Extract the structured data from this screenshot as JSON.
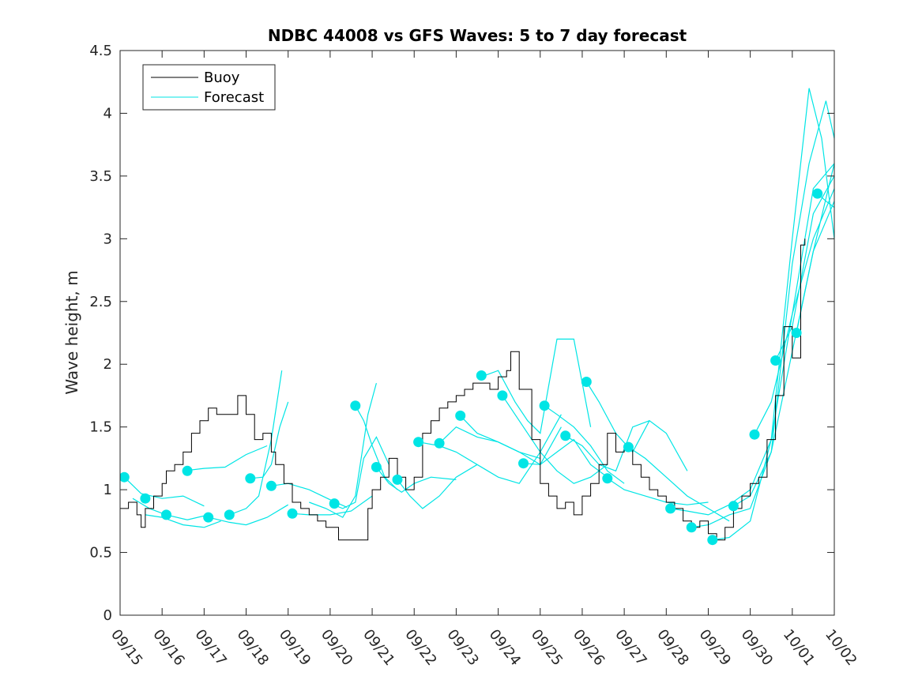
{
  "chart_data": {
    "type": "line",
    "title": "NDBC 44008 vs GFS Waves: 5 to 7 day forecast",
    "xlabel": "",
    "ylabel": "Wave height, m",
    "xlim": [
      0,
      17
    ],
    "ylim": [
      0,
      4.5
    ],
    "yticks": [
      0,
      0.5,
      1,
      1.5,
      2,
      2.5,
      3,
      3.5,
      4,
      4.5
    ],
    "ytick_labels": [
      "0",
      "0.5",
      "1",
      "1.5",
      "2",
      "2.5",
      "3",
      "3.5",
      "4",
      "4.5"
    ],
    "xticks": [
      0,
      1,
      2,
      3,
      4,
      5,
      6,
      7,
      8,
      9,
      10,
      11,
      12,
      13,
      14,
      15,
      16,
      17
    ],
    "xtick_labels": [
      "09/15",
      "09/16",
      "09/17",
      "09/18",
      "09/19",
      "09/20",
      "09/21",
      "09/22",
      "09/23",
      "09/24",
      "09/25",
      "09/26",
      "09/27",
      "09/28",
      "09/29",
      "09/30",
      "10/01",
      "10/02"
    ],
    "x_units": "days since 09/15 00:00",
    "legend": {
      "position": "top-left",
      "entries": [
        {
          "label": "Buoy",
          "color": "#000000"
        },
        {
          "label": "Forecast",
          "color": "#00e5e5"
        }
      ]
    },
    "colors": {
      "buoy": "#000000",
      "forecast": "#00e5e5",
      "axes": "#262626"
    },
    "buoy": {
      "name": "Buoy",
      "x": [
        0,
        0.2,
        0.4,
        0.5,
        0.6,
        0.8,
        1.0,
        1.1,
        1.3,
        1.5,
        1.7,
        1.9,
        2.1,
        2.3,
        2.5,
        2.8,
        3.0,
        3.2,
        3.4,
        3.6,
        3.7,
        3.9,
        4.1,
        4.3,
        4.5,
        4.7,
        4.9,
        5.0,
        5.2,
        5.5,
        5.7,
        5.9,
        6.0,
        6.2,
        6.4,
        6.6,
        6.8,
        7.0,
        7.2,
        7.4,
        7.6,
        7.8,
        8.0,
        8.2,
        8.4,
        8.6,
        8.8,
        9.0,
        9.2,
        9.3,
        9.5,
        9.8,
        10.0,
        10.2,
        10.4,
        10.6,
        10.8,
        11.0,
        11.2,
        11.4,
        11.6,
        11.8,
        12.0,
        12.2,
        12.4,
        12.6,
        12.8,
        13.0,
        13.2,
        13.4,
        13.6,
        13.8,
        14.0,
        14.2,
        14.4,
        14.6,
        14.8,
        15.0,
        15.2,
        15.4,
        15.6,
        15.8,
        16.0,
        16.2,
        16.3
      ],
      "y": [
        0.85,
        0.9,
        0.8,
        0.7,
        0.85,
        0.95,
        1.05,
        1.15,
        1.2,
        1.3,
        1.45,
        1.55,
        1.65,
        1.6,
        1.6,
        1.75,
        1.6,
        1.4,
        1.45,
        1.3,
        1.2,
        1.05,
        0.9,
        0.85,
        0.8,
        0.75,
        0.7,
        0.7,
        0.6,
        0.6,
        0.6,
        0.85,
        1.0,
        1.1,
        1.25,
        1.1,
        1.0,
        1.1,
        1.45,
        1.55,
        1.65,
        1.7,
        1.75,
        1.8,
        1.85,
        1.85,
        1.8,
        1.9,
        1.95,
        2.1,
        1.8,
        1.4,
        1.05,
        0.95,
        0.85,
        0.9,
        0.8,
        0.95,
        1.05,
        1.2,
        1.45,
        1.3,
        1.35,
        1.2,
        1.1,
        1.0,
        0.95,
        0.9,
        0.85,
        0.75,
        0.7,
        0.75,
        0.65,
        0.6,
        0.7,
        0.85,
        0.95,
        1.05,
        1.1,
        1.4,
        1.75,
        2.3,
        2.05,
        2.95,
        3.0
      ]
    },
    "forecasts": [
      {
        "x": [
          0.1,
          0.5,
          1.0,
          1.5,
          2.0
        ],
        "y": [
          1.1,
          0.97,
          0.93,
          0.95,
          0.87
        ]
      },
      {
        "x": [
          0.3,
          0.7,
          1.1,
          1.6,
          2.1
        ],
        "y": [
          0.93,
          0.85,
          0.8,
          0.76,
          0.8
        ]
      },
      {
        "x": [
          0.6,
          1.0,
          1.5,
          2.0,
          2.4
        ],
        "y": [
          0.8,
          0.78,
          0.72,
          0.7,
          0.75
        ]
      },
      {
        "x": [
          1.5,
          2.0,
          2.5,
          3.0,
          3.5
        ],
        "y": [
          1.15,
          1.17,
          1.18,
          1.28,
          1.35
        ]
      },
      {
        "x": [
          2.1,
          2.6,
          3.0,
          3.5,
          4.0
        ],
        "y": [
          0.78,
          0.74,
          0.72,
          0.78,
          0.88
        ]
      },
      {
        "x": [
          2.6,
          3.0,
          3.3,
          3.6,
          3.85
        ],
        "y": [
          0.8,
          0.85,
          0.95,
          1.4,
          1.95
        ]
      },
      {
        "x": [
          3.1,
          3.4,
          3.6,
          3.8,
          4.0
        ],
        "y": [
          1.09,
          1.1,
          1.2,
          1.5,
          1.7
        ]
      },
      {
        "x": [
          3.6,
          4.0,
          4.5,
          5.0,
          5.4
        ],
        "y": [
          1.03,
          1.05,
          1.0,
          0.92,
          0.86
        ]
      },
      {
        "x": [
          4.1,
          4.5,
          5.0,
          5.5,
          6.0
        ],
        "y": [
          0.81,
          0.8,
          0.8,
          0.83,
          0.95
        ]
      },
      {
        "x": [
          4.5,
          4.9,
          5.3,
          5.6,
          5.9,
          6.1
        ],
        "y": [
          0.9,
          0.85,
          0.78,
          0.95,
          1.6,
          1.85
        ]
      },
      {
        "x": [
          5.0,
          5.3,
          5.6,
          5.8,
          6.1,
          6.4
        ],
        "y": [
          0.89,
          0.85,
          0.9,
          1.25,
          1.42,
          1.2
        ]
      },
      {
        "x": [
          5.6,
          5.8,
          6.0,
          6.3,
          6.6
        ],
        "y": [
          1.67,
          1.55,
          1.35,
          1.1,
          1.0
        ]
      },
      {
        "x": [
          6.1,
          6.4,
          6.7,
          7.0,
          7.4,
          8.0
        ],
        "y": [
          1.18,
          1.05,
          0.98,
          1.05,
          1.1,
          1.08
        ]
      },
      {
        "x": [
          6.6,
          6.9,
          7.2,
          7.6,
          8.0,
          8.5
        ],
        "y": [
          1.08,
          0.95,
          0.85,
          0.95,
          1.1,
          1.2
        ]
      },
      {
        "x": [
          7.1,
          7.6,
          8.0,
          8.5,
          9.0,
          9.5,
          10.0,
          10.5
        ],
        "y": [
          1.38,
          1.35,
          1.3,
          1.2,
          1.1,
          1.05,
          1.3,
          1.6
        ]
      },
      {
        "x": [
          7.6,
          8.0,
          8.5,
          9.0,
          9.5,
          10.0
        ],
        "y": [
          1.37,
          1.5,
          1.42,
          1.38,
          1.3,
          1.25
        ]
      },
      {
        "x": [
          8.1,
          8.5,
          9.0,
          9.5,
          10.0,
          10.5
        ],
        "y": [
          1.59,
          1.45,
          1.38,
          1.3,
          1.2,
          1.5
        ]
      },
      {
        "x": [
          8.6,
          9.0,
          9.4,
          9.7,
          10.0,
          10.4,
          10.8,
          11.2
        ],
        "y": [
          1.9,
          1.95,
          1.7,
          1.55,
          1.45,
          2.2,
          2.2,
          1.5
        ]
      },
      {
        "x": [
          9.1,
          9.4,
          9.7,
          10.0,
          10.4,
          10.8,
          11.2,
          11.6
        ],
        "y": [
          1.75,
          1.6,
          1.45,
          1.3,
          1.15,
          1.05,
          1.1,
          1.2
        ]
      },
      {
        "x": [
          9.6,
          10.0,
          10.4,
          10.8,
          11.2,
          11.6
        ],
        "y": [
          1.21,
          1.2,
          1.3,
          1.4,
          1.2,
          1.1
        ]
      },
      {
        "x": [
          10.1,
          10.4,
          10.8,
          11.2,
          11.6,
          12.0
        ],
        "y": [
          1.67,
          1.6,
          1.5,
          1.35,
          1.15,
          1.05
        ]
      },
      {
        "x": [
          10.6,
          11.0,
          11.4,
          11.8,
          12.2,
          12.6
        ],
        "y": [
          1.43,
          1.35,
          1.2,
          1.15,
          1.5,
          1.55
        ]
      },
      {
        "x": [
          11.1,
          11.4,
          11.8,
          12.2,
          12.6,
          13.0,
          13.5
        ],
        "y": [
          1.86,
          1.7,
          1.45,
          1.3,
          1.55,
          1.45,
          1.15
        ]
      },
      {
        "x": [
          11.6,
          12.0,
          12.5,
          13.0,
          13.5,
          14.0
        ],
        "y": [
          1.09,
          1.0,
          0.95,
          0.9,
          0.88,
          0.9
        ]
      },
      {
        "x": [
          12.1,
          12.5,
          13.0,
          13.5,
          14.0,
          14.5
        ],
        "y": [
          1.34,
          1.25,
          1.1,
          0.95,
          0.85,
          0.75
        ]
      },
      {
        "x": [
          13.1,
          13.5,
          14.0,
          14.5,
          15.0,
          15.5,
          16.0,
          16.5,
          17.0
        ],
        "y": [
          0.85,
          0.83,
          0.8,
          0.88,
          1.0,
          1.4,
          2.4,
          3.4,
          3.6
        ]
      },
      {
        "x": [
          13.6,
          14.0,
          14.5,
          15.0,
          15.5,
          16.0,
          16.4,
          16.8,
          17.0
        ],
        "y": [
          0.7,
          0.72,
          0.8,
          0.85,
          1.3,
          2.8,
          3.6,
          4.1,
          3.8
        ]
      },
      {
        "x": [
          14.1,
          14.5,
          15.0,
          15.5,
          16.0,
          16.4,
          16.7,
          17.0
        ],
        "y": [
          0.6,
          0.62,
          0.75,
          1.4,
          3.0,
          4.2,
          3.8,
          3.0
        ]
      },
      {
        "x": [
          14.6,
          15.0,
          15.5,
          16.0,
          16.5,
          17.0
        ],
        "y": [
          0.87,
          0.95,
          1.3,
          2.1,
          2.9,
          3.3
        ]
      },
      {
        "x": [
          15.1,
          15.5,
          16.0,
          16.5,
          17.0
        ],
        "y": [
          1.44,
          1.7,
          2.4,
          3.0,
          3.4
        ]
      },
      {
        "x": [
          15.6,
          16.0,
          16.5,
          17.0
        ],
        "y": [
          2.03,
          2.3,
          3.2,
          3.5
        ]
      },
      {
        "x": [
          16.1,
          16.5,
          17.0
        ],
        "y": [
          2.25,
          2.9,
          3.6
        ]
      },
      {
        "x": [
          16.6,
          16.8,
          17.0
        ],
        "y": [
          3.36,
          3.3,
          3.25
        ]
      }
    ],
    "markers": [
      {
        "x": 0.1,
        "y": 1.1
      },
      {
        "x": 0.6,
        "y": 0.93
      },
      {
        "x": 1.1,
        "y": 0.8
      },
      {
        "x": 1.6,
        "y": 1.15
      },
      {
        "x": 2.1,
        "y": 0.78
      },
      {
        "x": 2.6,
        "y": 0.8
      },
      {
        "x": 3.1,
        "y": 1.09
      },
      {
        "x": 3.6,
        "y": 1.03
      },
      {
        "x": 4.1,
        "y": 0.81
      },
      {
        "x": 5.1,
        "y": 0.89
      },
      {
        "x": 5.6,
        "y": 1.67
      },
      {
        "x": 6.1,
        "y": 1.18
      },
      {
        "x": 6.6,
        "y": 1.08
      },
      {
        "x": 7.1,
        "y": 1.38
      },
      {
        "x": 7.6,
        "y": 1.37
      },
      {
        "x": 8.1,
        "y": 1.59
      },
      {
        "x": 8.6,
        "y": 1.91
      },
      {
        "x": 9.1,
        "y": 1.75
      },
      {
        "x": 9.6,
        "y": 1.21
      },
      {
        "x": 10.1,
        "y": 1.67
      },
      {
        "x": 10.6,
        "y": 1.43
      },
      {
        "x": 11.1,
        "y": 1.86
      },
      {
        "x": 11.6,
        "y": 1.09
      },
      {
        "x": 12.1,
        "y": 1.34
      },
      {
        "x": 13.1,
        "y": 0.85
      },
      {
        "x": 13.6,
        "y": 0.7
      },
      {
        "x": 14.1,
        "y": 0.6
      },
      {
        "x": 14.6,
        "y": 0.87
      },
      {
        "x": 15.1,
        "y": 1.44
      },
      {
        "x": 15.6,
        "y": 2.03
      },
      {
        "x": 16.1,
        "y": 2.25
      },
      {
        "x": 16.6,
        "y": 3.36
      }
    ]
  }
}
